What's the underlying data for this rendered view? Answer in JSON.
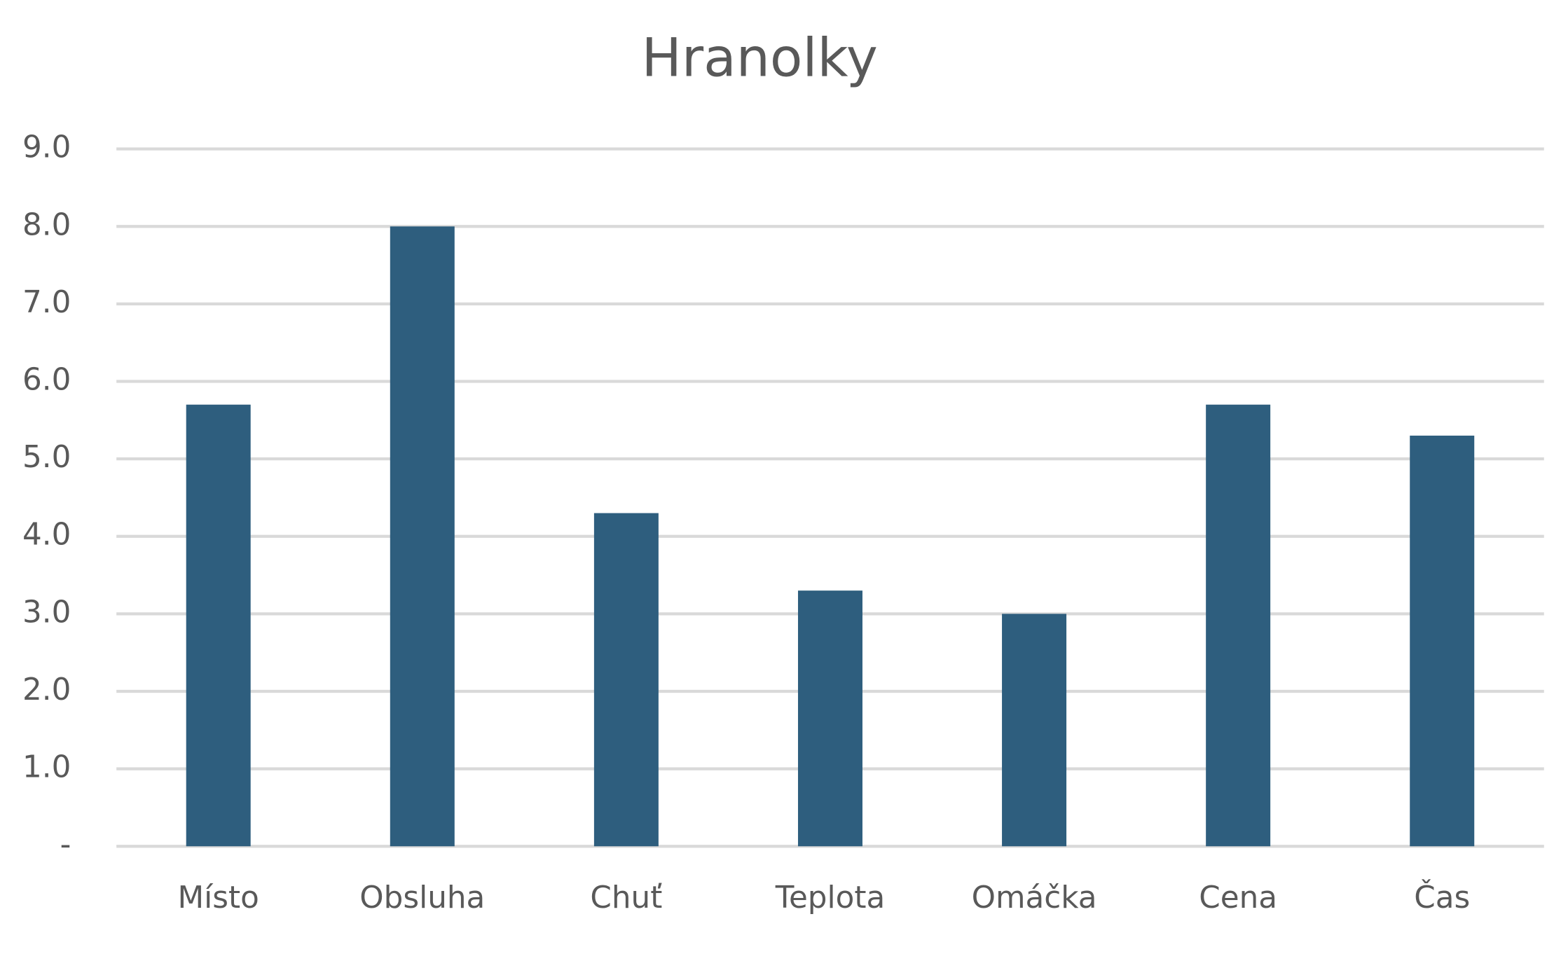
{
  "chart_data": {
    "type": "bar",
    "title": "Hranolky",
    "categories": [
      "Místo",
      "Obsluha",
      "Chuť",
      "Teplota",
      "Omáčka",
      "Cena",
      "Čas"
    ],
    "values": [
      5.7,
      8.0,
      4.3,
      3.3,
      3.0,
      5.7,
      5.3
    ],
    "color": "#2e5e7e",
    "ylim": [
      0,
      9
    ],
    "yticks": [
      {
        "value": 0,
        "label": "-"
      },
      {
        "value": 1,
        "label": "1.0"
      },
      {
        "value": 2,
        "label": "2.0"
      },
      {
        "value": 3,
        "label": "3.0"
      },
      {
        "value": 4,
        "label": "4.0"
      },
      {
        "value": 5,
        "label": "5.0"
      },
      {
        "value": 6,
        "label": "6.0"
      },
      {
        "value": 7,
        "label": "7.0"
      },
      {
        "value": 8,
        "label": "8.0"
      },
      {
        "value": 9,
        "label": "9.0"
      }
    ],
    "grid": true
  }
}
